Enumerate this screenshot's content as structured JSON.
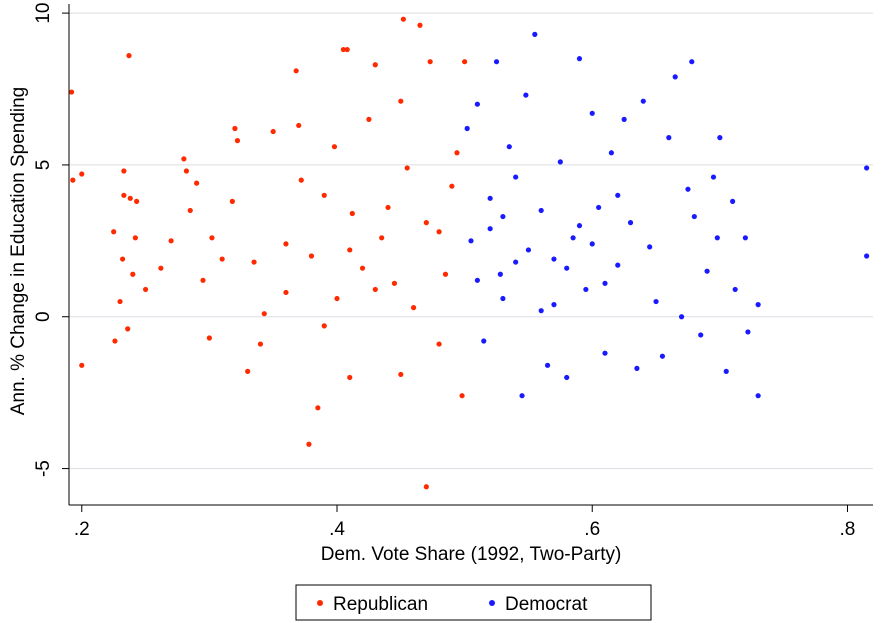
{
  "chart_data": {
    "type": "scatter",
    "xlabel": "Dem. Vote Share (1992, Two-Party)",
    "ylabel": "Ann. % Change in Education Spending",
    "xlim": [
      0.19,
      0.82
    ],
    "ylim": [
      -6.2,
      10.3
    ],
    "xticks": [
      {
        "value": 0.2,
        "label": ".2"
      },
      {
        "value": 0.4,
        "label": ".4"
      },
      {
        "value": 0.6,
        "label": ".6"
      },
      {
        "value": 0.8,
        "label": ".8"
      }
    ],
    "yticks": [
      {
        "value": -5,
        "label": "-5"
      },
      {
        "value": 0,
        "label": "0"
      },
      {
        "value": 5,
        "label": "5"
      },
      {
        "value": 10,
        "label": "10"
      }
    ],
    "grid": "horizontal",
    "legend_position": "bottom",
    "series": [
      {
        "name": "Republican",
        "color": "#ff2a00",
        "points": [
          [
            0.192,
            7.4
          ],
          [
            0.193,
            4.5
          ],
          [
            0.2,
            4.7
          ],
          [
            0.2,
            -1.6
          ],
          [
            0.225,
            2.8
          ],
          [
            0.226,
            -0.8
          ],
          [
            0.23,
            0.5
          ],
          [
            0.232,
            1.9
          ],
          [
            0.233,
            4.8
          ],
          [
            0.233,
            4.0
          ],
          [
            0.236,
            -0.4
          ],
          [
            0.237,
            8.6
          ],
          [
            0.238,
            3.9
          ],
          [
            0.24,
            1.4
          ],
          [
            0.242,
            2.6
          ],
          [
            0.243,
            3.8
          ],
          [
            0.25,
            0.9
          ],
          [
            0.262,
            1.6
          ],
          [
            0.27,
            2.5
          ],
          [
            0.28,
            5.2
          ],
          [
            0.282,
            4.8
          ],
          [
            0.285,
            3.5
          ],
          [
            0.29,
            4.4
          ],
          [
            0.295,
            1.2
          ],
          [
            0.3,
            -0.7
          ],
          [
            0.302,
            2.6
          ],
          [
            0.31,
            1.9
          ],
          [
            0.318,
            3.8
          ],
          [
            0.32,
            6.2
          ],
          [
            0.322,
            5.8
          ],
          [
            0.33,
            -1.8
          ],
          [
            0.335,
            1.8
          ],
          [
            0.34,
            -0.9
          ],
          [
            0.343,
            0.1
          ],
          [
            0.35,
            6.1
          ],
          [
            0.36,
            2.4
          ],
          [
            0.368,
            8.1
          ],
          [
            0.37,
            6.3
          ],
          [
            0.372,
            4.5
          ],
          [
            0.378,
            -4.2
          ],
          [
            0.38,
            2.0
          ],
          [
            0.385,
            -3.0
          ],
          [
            0.39,
            4.0
          ],
          [
            0.398,
            5.6
          ],
          [
            0.4,
            0.6
          ],
          [
            0.405,
            8.8
          ],
          [
            0.408,
            8.8
          ],
          [
            0.41,
            -2.0
          ],
          [
            0.412,
            3.4
          ],
          [
            0.42,
            1.6
          ],
          [
            0.425,
            6.5
          ],
          [
            0.43,
            8.3
          ],
          [
            0.435,
            2.6
          ],
          [
            0.44,
            3.6
          ],
          [
            0.445,
            1.1
          ],
          [
            0.45,
            7.1
          ],
          [
            0.452,
            9.8
          ],
          [
            0.455,
            4.9
          ],
          [
            0.46,
            0.3
          ],
          [
            0.465,
            9.6
          ],
          [
            0.47,
            -5.6
          ],
          [
            0.473,
            8.4
          ],
          [
            0.48,
            2.8
          ],
          [
            0.485,
            1.4
          ],
          [
            0.49,
            4.3
          ],
          [
            0.494,
            5.4
          ],
          [
            0.498,
            -2.6
          ],
          [
            0.5,
            8.4
          ],
          [
            0.36,
            0.8
          ],
          [
            0.41,
            2.2
          ],
          [
            0.43,
            0.9
          ],
          [
            0.47,
            3.1
          ],
          [
            0.39,
            -0.3
          ],
          [
            0.45,
            -1.9
          ],
          [
            0.48,
            -0.9
          ]
        ]
      },
      {
        "name": "Democrat",
        "color": "#1a1aff",
        "points": [
          [
            0.502,
            6.2
          ],
          [
            0.505,
            2.5
          ],
          [
            0.51,
            7.0
          ],
          [
            0.515,
            -0.8
          ],
          [
            0.52,
            3.9
          ],
          [
            0.525,
            8.4
          ],
          [
            0.528,
            1.4
          ],
          [
            0.535,
            5.6
          ],
          [
            0.54,
            4.6
          ],
          [
            0.545,
            -2.6
          ],
          [
            0.548,
            7.3
          ],
          [
            0.555,
            9.3
          ],
          [
            0.56,
            3.5
          ],
          [
            0.565,
            -1.6
          ],
          [
            0.57,
            1.9
          ],
          [
            0.575,
            5.1
          ],
          [
            0.58,
            -2.0
          ],
          [
            0.585,
            2.6
          ],
          [
            0.59,
            8.5
          ],
          [
            0.595,
            0.9
          ],
          [
            0.6,
            6.7
          ],
          [
            0.605,
            3.6
          ],
          [
            0.61,
            -1.2
          ],
          [
            0.615,
            5.4
          ],
          [
            0.62,
            1.7
          ],
          [
            0.625,
            6.5
          ],
          [
            0.63,
            3.1
          ],
          [
            0.635,
            -1.7
          ],
          [
            0.64,
            7.1
          ],
          [
            0.645,
            2.3
          ],
          [
            0.65,
            0.5
          ],
          [
            0.655,
            -1.3
          ],
          [
            0.66,
            5.9
          ],
          [
            0.665,
            7.9
          ],
          [
            0.67,
            0.0
          ],
          [
            0.675,
            4.2
          ],
          [
            0.678,
            8.4
          ],
          [
            0.68,
            3.3
          ],
          [
            0.685,
            -0.6
          ],
          [
            0.69,
            1.5
          ],
          [
            0.695,
            4.6
          ],
          [
            0.698,
            2.6
          ],
          [
            0.7,
            5.9
          ],
          [
            0.705,
            -1.8
          ],
          [
            0.71,
            3.8
          ],
          [
            0.712,
            0.9
          ],
          [
            0.72,
            2.6
          ],
          [
            0.722,
            -0.5
          ],
          [
            0.73,
            0.4
          ],
          [
            0.73,
            -2.6
          ],
          [
            0.815,
            4.9
          ],
          [
            0.815,
            2.0
          ],
          [
            0.53,
            0.6
          ],
          [
            0.55,
            2.2
          ],
          [
            0.57,
            0.4
          ],
          [
            0.59,
            3.0
          ],
          [
            0.61,
            1.1
          ],
          [
            0.52,
            2.9
          ],
          [
            0.54,
            1.8
          ],
          [
            0.56,
            0.2
          ],
          [
            0.58,
            1.6
          ],
          [
            0.6,
            2.4
          ],
          [
            0.62,
            4.0
          ],
          [
            0.51,
            1.2
          ],
          [
            0.53,
            3.3
          ]
        ]
      }
    ]
  }
}
